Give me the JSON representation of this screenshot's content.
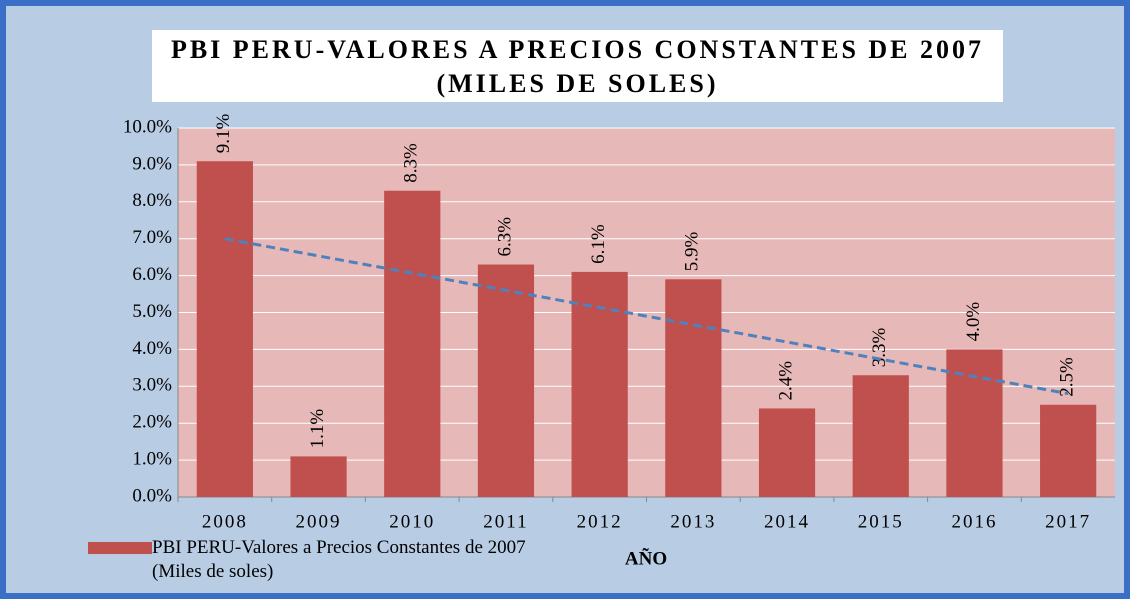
{
  "chart_data": {
    "type": "bar",
    "title": "PBI PERU-VALORES A PRECIOS CONSTANTES DE 2007 (MILES DE SOLES)",
    "x_label": "AÑO",
    "categories": [
      "2008",
      "2009",
      "2010",
      "2011",
      "2012",
      "2013",
      "2014",
      "2015",
      "2016",
      "2017"
    ],
    "series": [
      {
        "name": "PBI PERU-Valores a Precios Constantes de 2007 (Miles de soles)",
        "color": "#c0504d",
        "values": [
          9.1,
          1.1,
          8.3,
          6.3,
          6.1,
          5.9,
          2.4,
          3.3,
          4.0,
          2.5
        ],
        "value_labels": [
          "9.1%",
          "1.1%",
          "8.3%",
          "6.3%",
          "6.1%",
          "5.9%",
          "2.4%",
          "3.3%",
          "4.0%",
          "2.5%"
        ]
      }
    ],
    "trendline": {
      "start": 7.0,
      "end": 2.8,
      "color": "#4f81bd"
    },
    "ylim": [
      0,
      10
    ],
    "yticks": [
      {
        "value": 0,
        "label": "0.0%"
      },
      {
        "value": 1,
        "label": "1.0%"
      },
      {
        "value": 2,
        "label": "2.0%"
      },
      {
        "value": 3,
        "label": "3.0%"
      },
      {
        "value": 4,
        "label": "4.0%"
      },
      {
        "value": 5,
        "label": "5.0%"
      },
      {
        "value": 6,
        "label": "6.0%"
      },
      {
        "value": 7,
        "label": "7.0%"
      },
      {
        "value": 8,
        "label": "8.0%"
      },
      {
        "value": 9,
        "label": "9.0%"
      },
      {
        "value": 10,
        "label": "10.0%"
      }
    ],
    "grid": true,
    "legend": "bottom-left"
  }
}
